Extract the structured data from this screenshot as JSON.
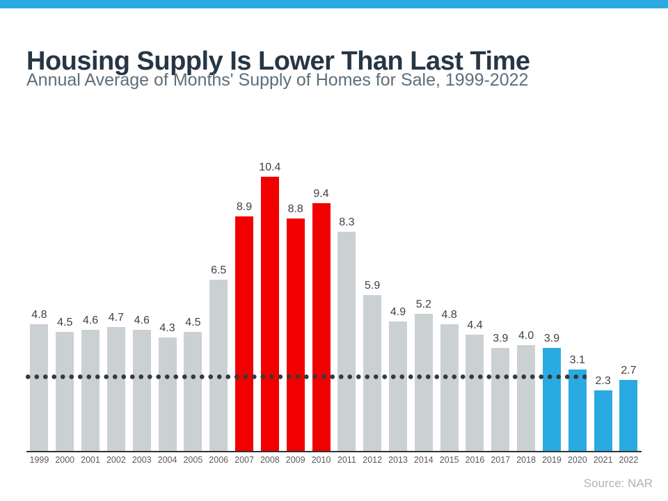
{
  "page": {
    "title": "Housing Supply Is Lower Than Last Time",
    "subtitle": "Annual Average of Months' Supply of Homes for Sale, 1999-2022",
    "source_note": "Source: NAR",
    "accent_strip_color": "#29abe2",
    "background_color": "#ffffff"
  },
  "chart_data": {
    "type": "bar",
    "title": "Housing Supply Is Lower Than Last Time",
    "subtitle": "Annual Average of Months' Supply of Homes for Sale, 1999-2022",
    "xlabel": "",
    "ylabel": "",
    "ylim": [
      0,
      10.4
    ],
    "grid": false,
    "legend": false,
    "categories": [
      "1999",
      "2000",
      "2001",
      "2002",
      "2003",
      "2004",
      "2005",
      "2006",
      "2007",
      "2008",
      "2009",
      "2010",
      "2011",
      "2012",
      "2013",
      "2014",
      "2015",
      "2016",
      "2017",
      "2018",
      "2019",
      "2020",
      "2021",
      "2022"
    ],
    "values": [
      4.8,
      4.5,
      4.6,
      4.7,
      4.6,
      4.3,
      4.5,
      6.5,
      8.9,
      10.4,
      8.8,
      9.4,
      8.3,
      5.9,
      4.9,
      5.2,
      4.8,
      4.4,
      3.9,
      4.0,
      3.9,
      3.1,
      2.3,
      2.7
    ],
    "value_labels": [
      "4.8",
      "4.5",
      "4.6",
      "4.7",
      "4.6",
      "4.3",
      "4.5",
      "6.5",
      "8.9",
      "10.4",
      "8.8",
      "9.4",
      "8.3",
      "5.9",
      "4.9",
      "5.2",
      "4.8",
      "4.4",
      "3.9",
      "4.0",
      "3.9",
      "3.1",
      "2.3",
      "2.7"
    ],
    "bar_color_names": [
      "gray",
      "gray",
      "gray",
      "gray",
      "gray",
      "gray",
      "gray",
      "gray",
      "red",
      "red",
      "red",
      "red",
      "gray",
      "gray",
      "gray",
      "gray",
      "gray",
      "gray",
      "gray",
      "gray",
      "blue",
      "blue",
      "blue",
      "blue"
    ],
    "palette": {
      "gray": "#cbd0d3",
      "red": "#f20000",
      "blue": "#29abe2"
    },
    "value_label_color": "#3f3f3f",
    "axis_label_color": "#595959",
    "reference_line": {
      "level": 2.8,
      "color": "#333a40",
      "style": "dotted",
      "span_start_year": "1999",
      "span_end_year": "2020"
    },
    "source": "Source: NAR"
  }
}
